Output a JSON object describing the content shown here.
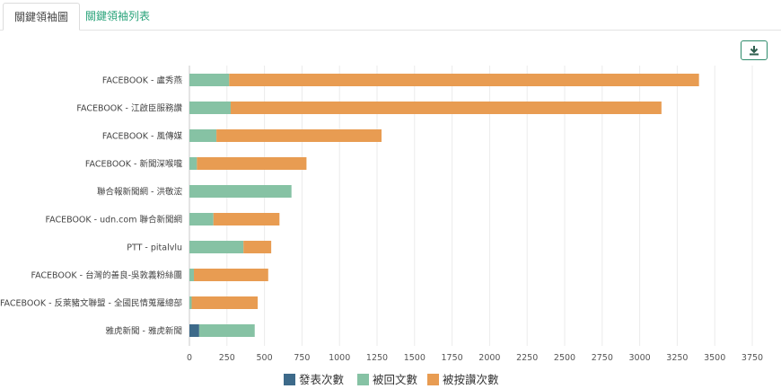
{
  "tabs": [
    {
      "label": "關鍵領袖圖",
      "active": true
    },
    {
      "label": "關鍵領袖列表",
      "active": false
    }
  ],
  "download_button": {
    "icon": "download-icon"
  },
  "chart_data": {
    "type": "bar",
    "orientation": "horizontal",
    "stacked": true,
    "categories": [
      "FACEBOOK - 盧秀燕",
      "FACEBOOK - 江啟臣服務讚",
      "FACEBOOK - 風傳媒",
      "FACEBOOK - 新聞深喉嚨",
      "聯合報新聞網 - 洪敬浤",
      "FACEBOOK - udn.com 聯合新聞網",
      "PTT - pitalvlu",
      "FACEBOOK - 台灣的善良-吳敦義粉絲團",
      "FACEBOOK - 反萊豬文聯盟 - 全國民情蒐羅總部",
      "雅虎新聞 - 雅虎新聞"
    ],
    "series": [
      {
        "name": "發表次數",
        "color": "#3d6a8a",
        "values": [
          0,
          0,
          0,
          0,
          0,
          0,
          0,
          0,
          0,
          65
        ]
      },
      {
        "name": "被回文數",
        "color": "#86c2a4",
        "values": [
          265,
          275,
          180,
          50,
          680,
          160,
          360,
          30,
          15,
          370
        ]
      },
      {
        "name": "被按讚次數",
        "color": "#e89c52",
        "values": [
          3130,
          2870,
          1100,
          730,
          0,
          440,
          185,
          495,
          440,
          0
        ]
      }
    ],
    "x_ticks": [
      0,
      250,
      500,
      750,
      1000,
      1250,
      1500,
      1750,
      2000,
      2250,
      2500,
      2750,
      3000,
      3250,
      3500,
      3750
    ],
    "xlim": [
      0,
      3750
    ],
    "grid": "vertical",
    "legend_position": "bottom-center"
  }
}
